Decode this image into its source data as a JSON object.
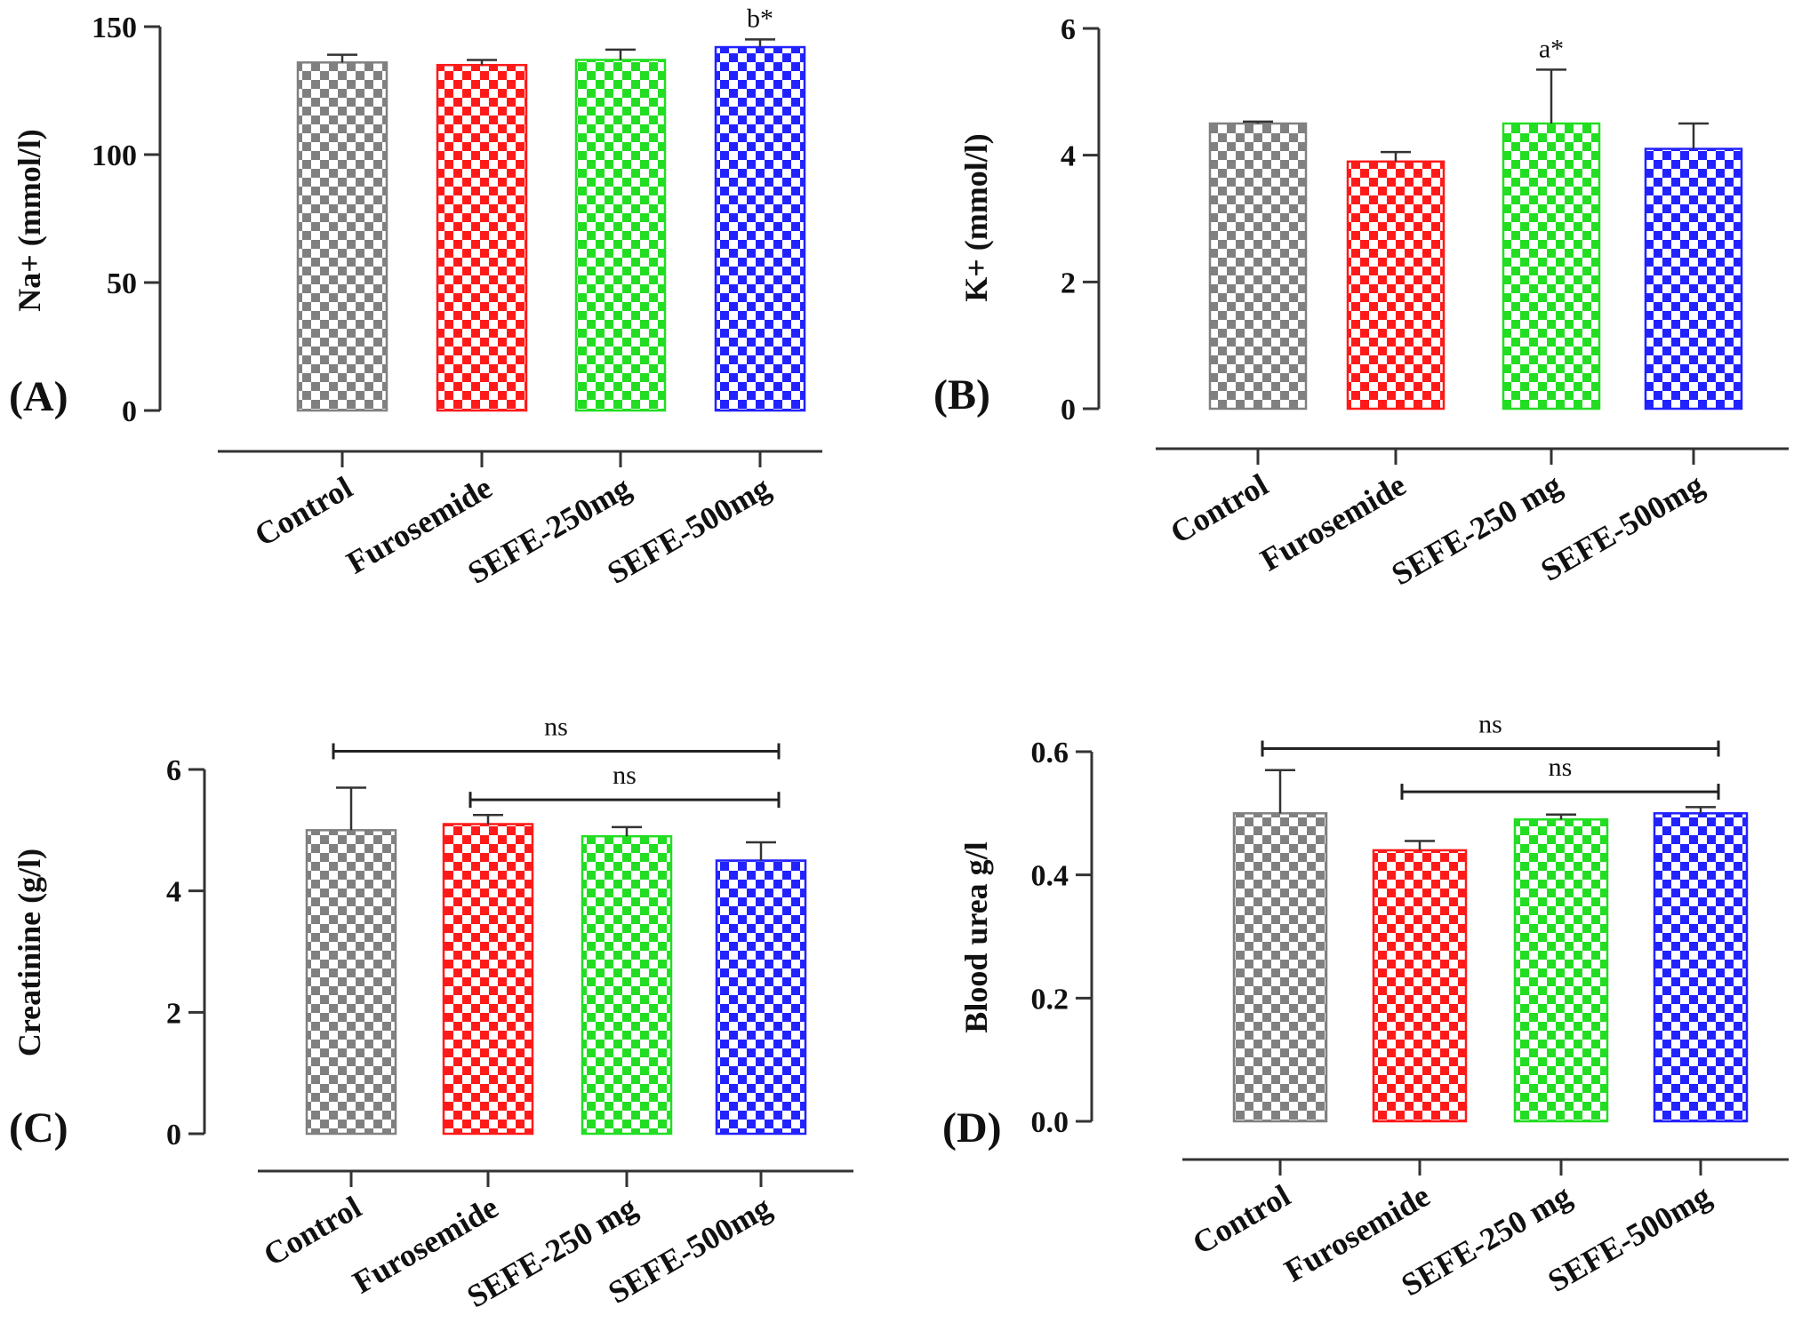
{
  "figure": {
    "colors": {
      "Control": "#808080",
      "Furosemide": "#ff1a1a",
      "SEFE-250": "#22dd22",
      "SEFE-500": "#2222ff"
    }
  },
  "chart_data": [
    {
      "type": "bar",
      "panel_label": "(A)",
      "categories": [
        "Control",
        "Furosemide",
        "SEFE-250mg",
        "SEFE-500mg"
      ],
      "values": [
        136,
        135,
        137,
        142
      ],
      "errors": [
        3,
        2,
        4,
        3
      ],
      "ylabel": "Na+ (mmol/l)",
      "ylim": [
        0,
        150
      ],
      "yticks": [
        "0",
        "50",
        "100",
        "150"
      ],
      "ytick_values": [
        0,
        50,
        100,
        150
      ],
      "annotations": [
        {
          "category_index": 3,
          "text": "b*"
        }
      ],
      "brackets": []
    },
    {
      "type": "bar",
      "panel_label": "(B)",
      "categories": [
        "Control",
        "Furosemide",
        "SEFE-250 mg",
        "SEFE-500mg"
      ],
      "values": [
        4.5,
        3.9,
        4.5,
        4.1
      ],
      "errors": [
        0.03,
        0.15,
        0.85,
        0.4
      ],
      "ylabel": "K+ (mmol/l)",
      "ylim": [
        0,
        6
      ],
      "yticks": [
        "0",
        "2",
        "4",
        "6"
      ],
      "ytick_values": [
        0,
        2,
        4,
        6
      ],
      "annotations": [
        {
          "category_index": 2,
          "text": "a*"
        }
      ],
      "brackets": []
    },
    {
      "type": "bar",
      "panel_label": "(C)",
      "categories": [
        "Control",
        "Furosemide",
        "SEFE-250 mg",
        "SEFE-500mg"
      ],
      "values": [
        5.0,
        5.1,
        4.9,
        4.5
      ],
      "errors": [
        0.7,
        0.15,
        0.15,
        0.3
      ],
      "ylabel": "Creatinine (g/l)",
      "ylim": [
        0,
        6
      ],
      "yticks": [
        "0",
        "2",
        "4",
        "6"
      ],
      "ytick_values": [
        0,
        2,
        4,
        6
      ],
      "annotations": [],
      "brackets": [
        {
          "from": 0,
          "to": 3,
          "text": "ns",
          "value": 6.3
        },
        {
          "from": 1,
          "to": 3,
          "text": "ns",
          "value": 5.5
        }
      ]
    },
    {
      "type": "bar",
      "panel_label": "(D)",
      "categories": [
        "Control",
        "Furosemide",
        "SEFE-250 mg",
        "SEFE-500mg"
      ],
      "values": [
        0.5,
        0.44,
        0.49,
        0.5
      ],
      "errors": [
        0.07,
        0.015,
        0.008,
        0.01
      ],
      "ylabel": "Blood urea g/l",
      "ylim": [
        0,
        0.6
      ],
      "yticks": [
        "0.0",
        "0.2",
        "0.4",
        "0.6"
      ],
      "ytick_values": [
        0,
        0.2,
        0.4,
        0.6
      ],
      "annotations": [],
      "brackets": [
        {
          "from": 0,
          "to": 3,
          "text": "ns",
          "value": 0.605
        },
        {
          "from": 1,
          "to": 3,
          "text": "ns",
          "value": 0.535
        }
      ]
    }
  ]
}
